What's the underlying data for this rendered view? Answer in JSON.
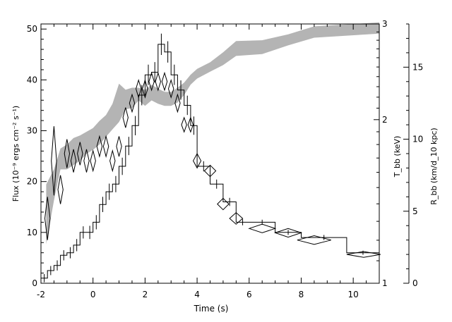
{
  "chart_data": {
    "type": "line",
    "xlabel": "Time (s)",
    "ylabel_left": "Flux (10⁻⁹ ergs cm⁻² s⁻¹)",
    "ylabel_mid": "T_bb (keV)",
    "ylabel_right": "R_bb (km/d_10 kpc)",
    "xlim": [
      -2,
      11
    ],
    "ylim_flux": [
      0,
      51
    ],
    "ylim_tbb_log": [
      1,
      3
    ],
    "ylim_rbb": [
      0,
      18
    ],
    "x_ticks": [
      -2,
      0,
      2,
      4,
      6,
      8,
      10
    ],
    "flux_ticks": [
      0,
      10,
      20,
      30,
      40,
      50
    ],
    "tbb_ticks": [
      1,
      2,
      3
    ],
    "rbb_ticks": [
      0,
      5,
      10,
      15
    ],
    "series": [
      {
        "style": "histogram",
        "bins_x": [
          -2.0,
          -1.75,
          -1.5,
          -1.25,
          -1.0,
          -0.75,
          -0.5,
          -0.25,
          0.0,
          0.25,
          0.5,
          0.75,
          1.0,
          1.25,
          1.5,
          1.75,
          2.0,
          2.25,
          2.5,
          2.75,
          3.0,
          3.25,
          3.5,
          3.75,
          4.0,
          4.5,
          5.0,
          5.5,
          6.0,
          7.0,
          8.0,
          9.75,
          11.0
        ],
        "values": [
          1.0,
          2.5,
          3.5,
          5.5,
          6.0,
          7.5,
          10.0,
          10.0,
          12.0,
          15.5,
          18.0,
          19.5,
          23.0,
          27.0,
          31.0,
          37.0,
          41.0,
          41.5,
          47.0,
          45.5,
          41.0,
          38.0,
          35.0,
          31.0,
          23.0,
          19.5,
          16.0,
          12.0,
          12.0,
          10.0,
          9.0,
          6.0
        ],
        "errors": [
          0.8,
          0.9,
          1.0,
          1.0,
          1.1,
          1.2,
          1.2,
          1.3,
          1.4,
          1.5,
          1.6,
          1.6,
          1.7,
          1.8,
          1.9,
          2.0,
          2.0,
          2.0,
          2.1,
          2.1,
          2.0,
          1.9,
          1.9,
          1.8,
          1.0,
          0.9,
          0.8,
          0.6,
          0.5,
          0.5,
          0.5,
          0.4
        ]
      },
      {
        "style": "diamonds",
        "axis": "R_bb",
        "x": [
          -1.75,
          -1.5,
          -1.25,
          -1.0,
          -0.75,
          -0.5,
          -0.25,
          0.0,
          0.25,
          0.5,
          0.75,
          1.0,
          1.25,
          1.5,
          1.75,
          2.0,
          2.25,
          2.5,
          2.75,
          3.0,
          3.25,
          3.5,
          3.75,
          4.0,
          4.5,
          5.0,
          5.5,
          6.5,
          7.5,
          8.5,
          10.4
        ],
        "y": [
          4.5,
          8.5,
          6.5,
          9.0,
          8.5,
          9.0,
          8.5,
          8.5,
          9.5,
          9.5,
          8.5,
          9.5,
          11.5,
          12.5,
          13.5,
          13.5,
          14.0,
          14.0,
          14.0,
          13.5,
          12.5,
          11.0,
          11.0,
          8.5,
          7.8,
          5.5,
          4.5,
          3.8,
          3.5,
          3.0,
          2.0
        ],
        "dx": [
          0.1,
          0.1,
          0.1,
          0.1,
          0.1,
          0.1,
          0.1,
          0.1,
          0.1,
          0.1,
          0.1,
          0.1,
          0.1,
          0.1,
          0.1,
          0.1,
          0.1,
          0.1,
          0.1,
          0.1,
          0.1,
          0.1,
          0.1,
          0.15,
          0.22,
          0.22,
          0.25,
          0.5,
          0.5,
          0.65,
          0.65
        ],
        "dy": [
          1.5,
          2.4,
          1.0,
          1.0,
          0.8,
          0.8,
          0.8,
          0.7,
          0.7,
          0.7,
          0.7,
          0.7,
          0.7,
          0.6,
          0.6,
          0.6,
          0.6,
          0.6,
          0.6,
          0.6,
          0.6,
          0.5,
          0.5,
          0.5,
          0.4,
          0.4,
          0.4,
          0.3,
          0.3,
          0.3,
          0.2
        ]
      },
      {
        "style": "band",
        "axis": "T_bb",
        "x": [
          -1.8,
          -1.5,
          -1.25,
          -1.0,
          -0.75,
          -0.5,
          -0.25,
          0.0,
          0.25,
          0.5,
          0.75,
          1.0,
          1.25,
          1.5,
          1.75,
          2.0,
          2.25,
          2.5,
          2.75,
          3.0,
          3.25,
          3.5,
          3.75,
          4.0,
          4.5,
          5.0,
          5.5,
          6.5,
          7.5,
          8.5,
          11.0
        ],
        "low": [
          1.18,
          1.42,
          1.62,
          1.62,
          1.65,
          1.68,
          1.73,
          1.76,
          1.8,
          1.86,
          1.92,
          1.98,
          2.09,
          2.1,
          2.17,
          2.12,
          2.17,
          2.14,
          2.12,
          2.12,
          2.15,
          2.22,
          2.32,
          2.38,
          2.45,
          2.52,
          2.62,
          2.64,
          2.74,
          2.83,
          2.88
        ],
        "high": [
          1.52,
          1.62,
          1.77,
          1.8,
          1.85,
          1.87,
          1.9,
          1.93,
          1.99,
          2.04,
          2.14,
          2.33,
          2.27,
          2.29,
          2.29,
          2.27,
          2.32,
          2.28,
          2.25,
          2.25,
          2.29,
          2.34,
          2.42,
          2.48,
          2.55,
          2.66,
          2.79,
          2.8,
          2.87,
          2.97,
          3.02
        ]
      }
    ]
  }
}
